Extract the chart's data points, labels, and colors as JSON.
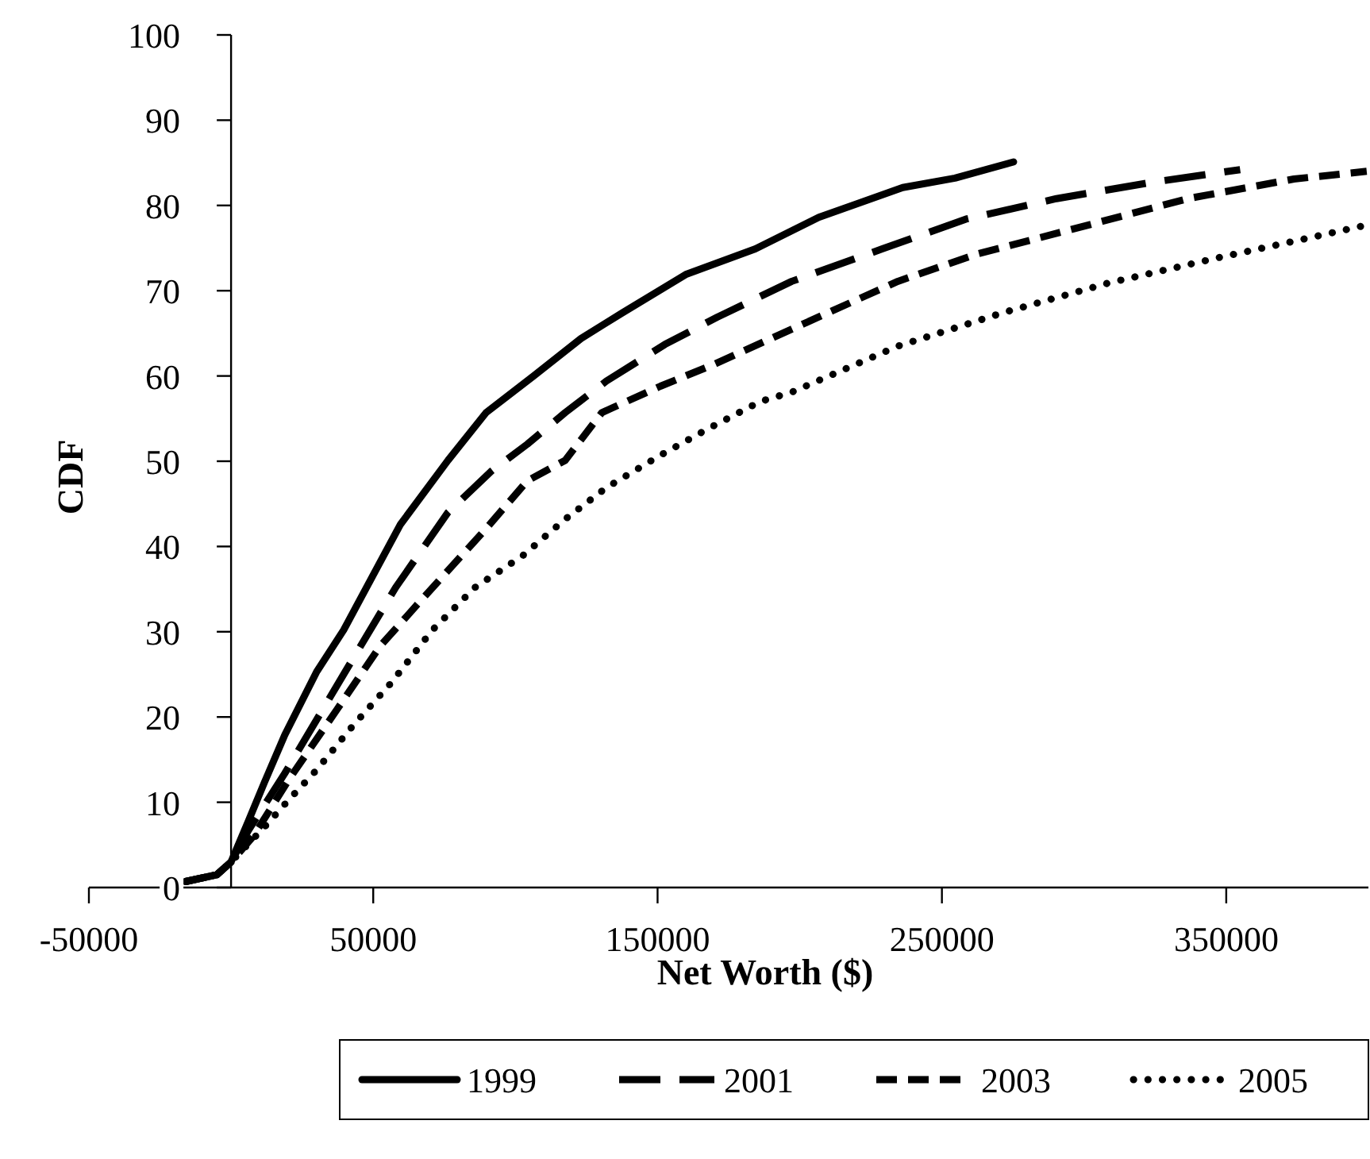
{
  "chart_data": {
    "type": "line",
    "xlabel": "Net Worth ($)",
    "ylabel": "CDF",
    "xlim": [
      -50000,
      400000
    ],
    "xticks": [
      -50000,
      50000,
      150000,
      250000,
      350000
    ],
    "ylim": [
      0,
      100
    ],
    "yticks": [
      0,
      10,
      20,
      30,
      40,
      50,
      60,
      70,
      80,
      90,
      100
    ],
    "grid": false,
    "legend": "bottom",
    "marker": "none",
    "series": [
      {
        "name": "1999",
        "color": "#000000",
        "line_style": "solid",
        "x": [
          -16000,
          -5000,
          0,
          6100,
          11700,
          18900,
          30100,
          39600,
          50700,
          59600,
          76300,
          89700,
          106400,
          123100,
          137600,
          159900,
          184400,
          206700,
          236200,
          254600,
          275200
        ],
        "values": [
          0.7,
          1.5,
          3,
          7.8,
          12.3,
          17.9,
          25.3,
          30.2,
          37.1,
          42.6,
          50.1,
          55.7,
          60.0,
          64.4,
          67.4,
          71.9,
          74.9,
          78.6,
          82.1,
          83.2,
          85.1
        ]
      },
      {
        "name": "2001",
        "color": "#000000",
        "line_style": "dashed",
        "x": [
          -16000,
          -5000,
          0,
          6100,
          18900,
          41200,
          57900,
          76300,
          91400,
          104200,
          117500,
          132000,
          152600,
          171000,
          197200,
          229000,
          258500,
          290300,
          323700,
          354900
        ],
        "values": [
          0.7,
          1.5,
          3,
          6.7,
          13.4,
          25.9,
          35.2,
          44.0,
          48.8,
          52.0,
          55.7,
          59.4,
          63.7,
          66.9,
          71.1,
          74.9,
          78.4,
          80.8,
          82.7,
          84.2
        ]
      },
      {
        "name": "2003",
        "color": "#000000",
        "line_style": "dashed",
        "x": [
          -16000,
          -5000,
          0,
          7800,
          20600,
          37300,
          52400,
          67400,
          89700,
          104200,
          117500,
          130400,
          151000,
          169400,
          197200,
          234500,
          262400,
          299200,
          336500,
          373800,
          399400
        ],
        "values": [
          0.7,
          1.5,
          3,
          6.0,
          12.8,
          20.9,
          28.3,
          33.9,
          42.1,
          47.7,
          50.1,
          55.7,
          58.8,
          61.3,
          65.5,
          71.1,
          74.3,
          77.5,
          80.8,
          83.1,
          84.0
        ]
      },
      {
        "name": "2005",
        "color": "#000000",
        "line_style": "dotted",
        "x": [
          -16000,
          -5000,
          0,
          12300,
          20600,
          30100,
          42900,
          56300,
          70800,
          85800,
          102500,
          117500,
          132000,
          151000,
          167700,
          186100,
          197200,
          234500,
          271300,
          308600,
          347600,
          373800,
          399400
        ],
        "values": [
          0.7,
          1.5,
          3,
          7.3,
          10.4,
          13.8,
          19.0,
          24.0,
          30.2,
          35.2,
          38.9,
          43.2,
          46.9,
          50.7,
          53.8,
          57.0,
          58.1,
          63.5,
          67.4,
          70.9,
          73.9,
          75.8,
          77.7
        ]
      }
    ]
  }
}
